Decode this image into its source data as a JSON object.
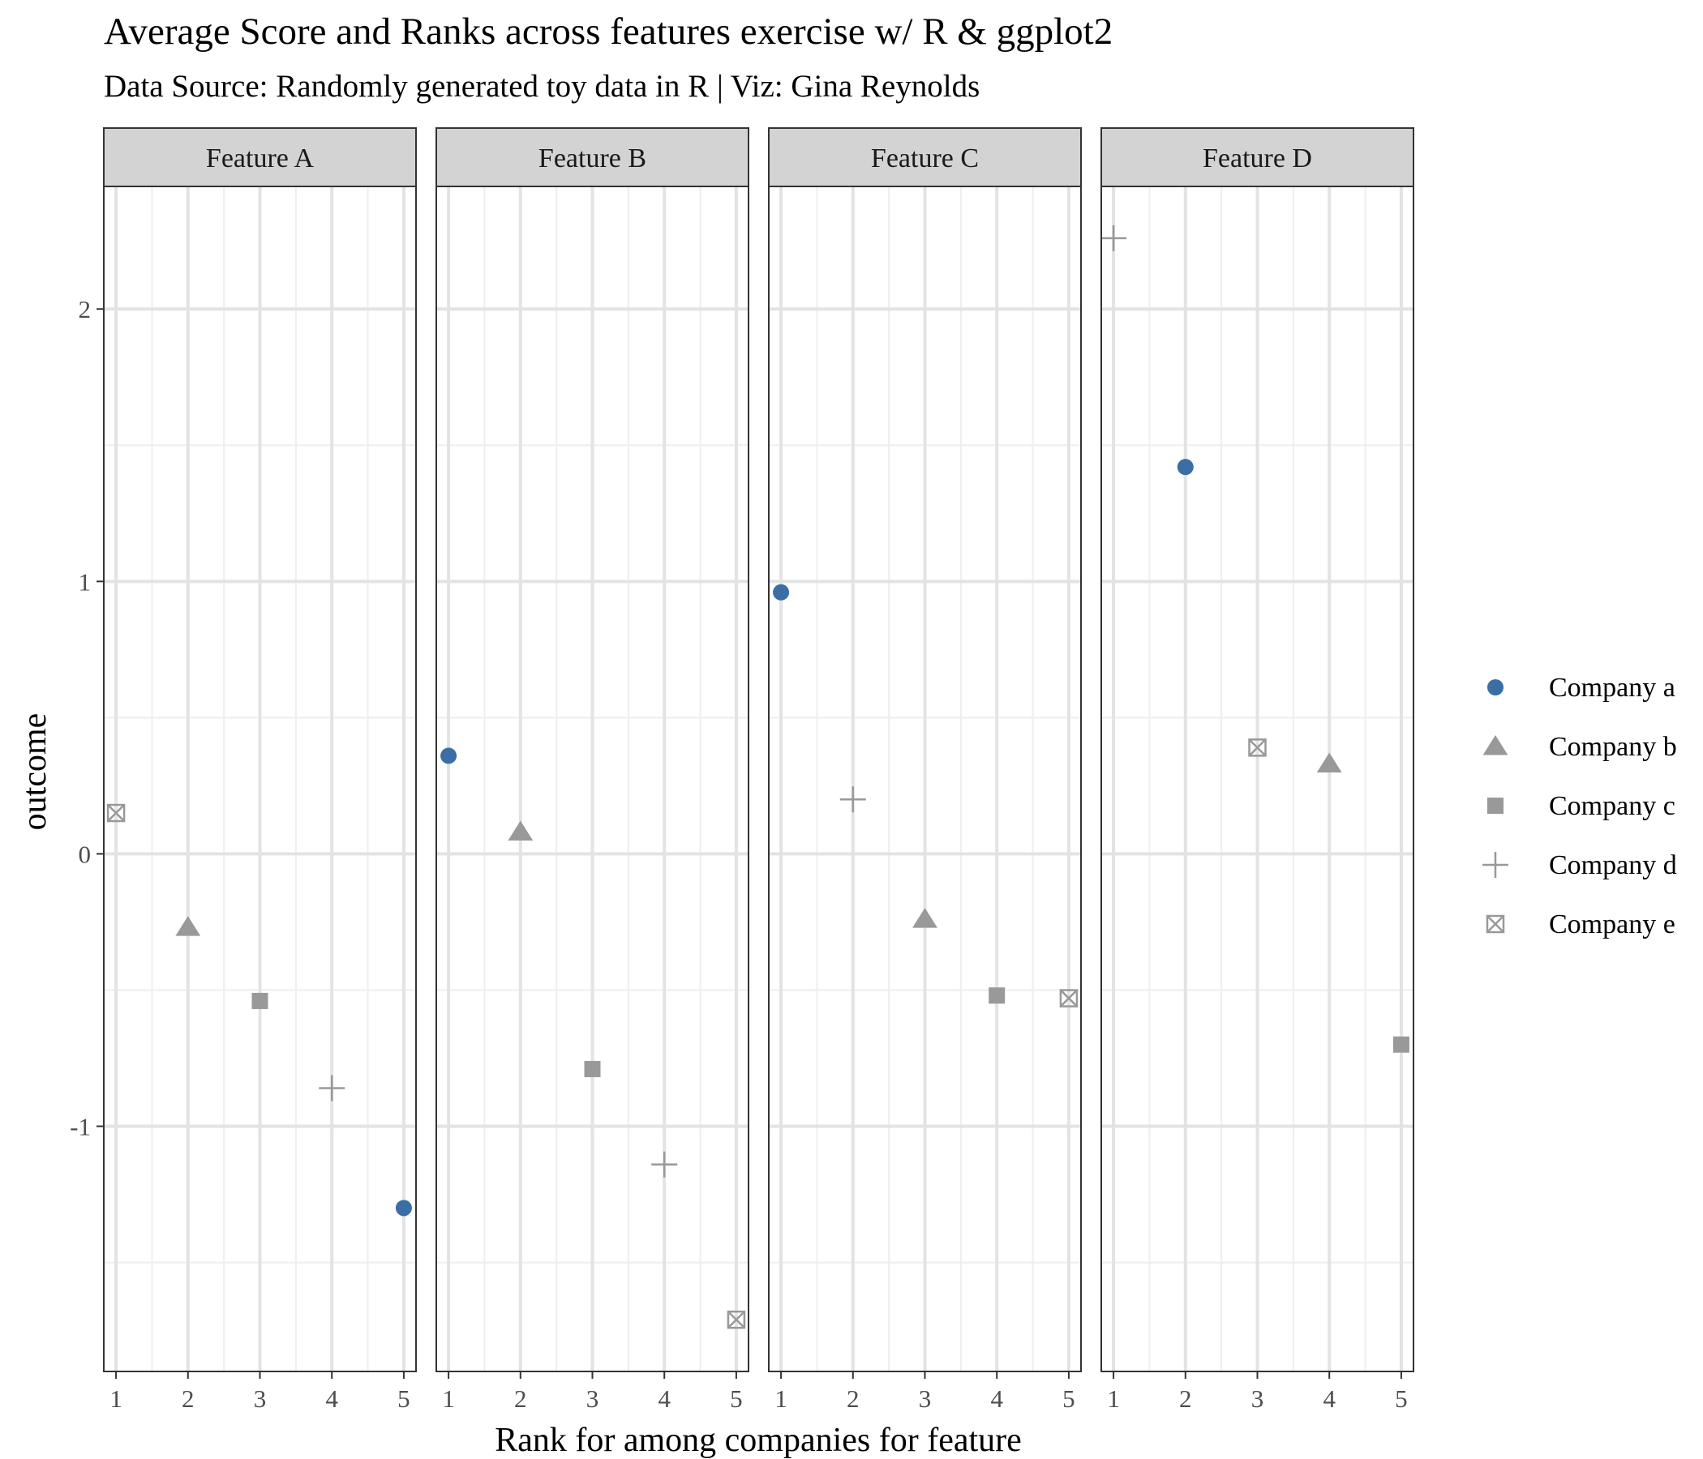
{
  "chart_data": {
    "type": "scatter",
    "title": "Average Score and Ranks across features exercise w/ R & ggplot2",
    "subtitle": "Data Source: Randomly generated toy data in R | Viz: Gina Reynolds",
    "xlabel": "Rank for among companies for feature",
    "ylabel": "outcome",
    "xlim": [
      0.83,
      5.17
    ],
    "ylim": [
      -1.9,
      2.45
    ],
    "x_ticks": [
      "1",
      "2",
      "3",
      "4",
      "5"
    ],
    "y_ticks": [
      {
        "value": 2,
        "label": "2"
      },
      {
        "value": 1,
        "label": "1"
      },
      {
        "value": 0,
        "label": "0"
      },
      {
        "value": -1,
        "label": "-1"
      }
    ],
    "grid": true,
    "legend_position": "right",
    "panels": [
      "Feature A",
      "Feature B",
      "Feature C",
      "Feature D"
    ],
    "series": [
      {
        "name": "Company a",
        "shape": "circle",
        "color": "#3a6ea5",
        "points": [
          {
            "panel": "Feature A",
            "x": 5,
            "y": -1.3
          },
          {
            "panel": "Feature B",
            "x": 1,
            "y": 0.36
          },
          {
            "panel": "Feature C",
            "x": 1,
            "y": 0.96
          },
          {
            "panel": "Feature D",
            "x": 2,
            "y": 1.42
          }
        ]
      },
      {
        "name": "Company b",
        "shape": "triangle",
        "color": "#999999",
        "points": [
          {
            "panel": "Feature A",
            "x": 2,
            "y": -0.27
          },
          {
            "panel": "Feature B",
            "x": 2,
            "y": 0.08
          },
          {
            "panel": "Feature C",
            "x": 3,
            "y": -0.24
          },
          {
            "panel": "Feature D",
            "x": 4,
            "y": 0.33
          }
        ]
      },
      {
        "name": "Company c",
        "shape": "square",
        "color": "#999999",
        "points": [
          {
            "panel": "Feature A",
            "x": 3,
            "y": -0.54
          },
          {
            "panel": "Feature B",
            "x": 3,
            "y": -0.79
          },
          {
            "panel": "Feature C",
            "x": 4,
            "y": -0.52
          },
          {
            "panel": "Feature D",
            "x": 5,
            "y": -0.7
          }
        ]
      },
      {
        "name": "Company d",
        "shape": "plus",
        "color": "#999999",
        "points": [
          {
            "panel": "Feature A",
            "x": 4,
            "y": -0.86
          },
          {
            "panel": "Feature B",
            "x": 4,
            "y": -1.14
          },
          {
            "panel": "Feature C",
            "x": 2,
            "y": 0.2
          },
          {
            "panel": "Feature D",
            "x": 1,
            "y": 2.26
          }
        ]
      },
      {
        "name": "Company e",
        "shape": "boxcross",
        "color": "#999999",
        "points": [
          {
            "panel": "Feature A",
            "x": 1,
            "y": 0.15
          },
          {
            "panel": "Feature B",
            "x": 5,
            "y": -1.71
          },
          {
            "panel": "Feature C",
            "x": 5,
            "y": -0.53
          },
          {
            "panel": "Feature D",
            "x": 3,
            "y": 0.39
          }
        ]
      }
    ]
  }
}
